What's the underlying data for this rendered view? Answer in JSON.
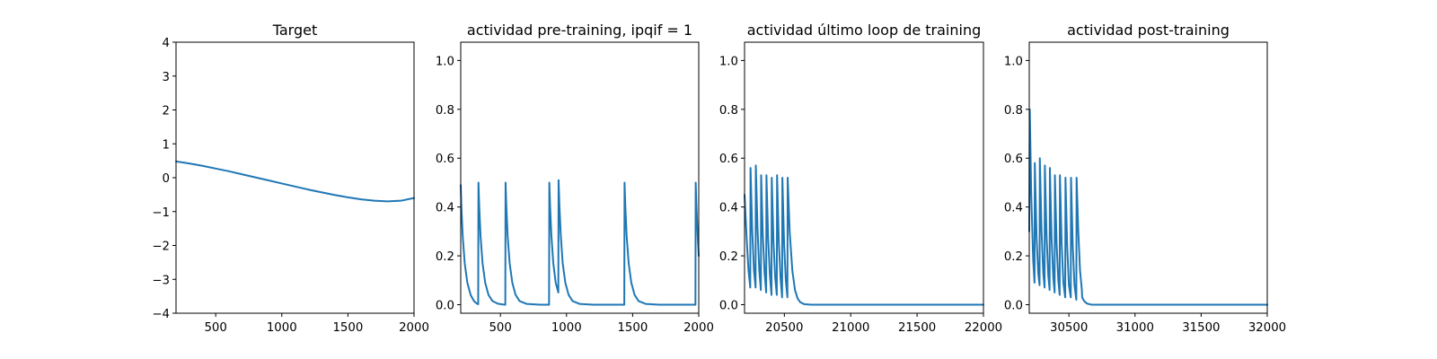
{
  "colors": {
    "line": "#1f77b4",
    "axes": "#000000",
    "background": "#ffffff"
  },
  "chart_data": [
    {
      "type": "line",
      "title": "Target",
      "xlabel": "",
      "ylabel": "",
      "xlim": [
        200,
        2000
      ],
      "ylim": [
        -4,
        4
      ],
      "xticks": [
        500,
        1000,
        1500,
        2000
      ],
      "xtick_labels": [
        "500",
        "1000",
        "1500",
        "2000"
      ],
      "yticks": [
        -4,
        -3,
        -2,
        -1,
        0,
        1,
        2,
        3,
        4
      ],
      "ytick_labels": [
        "−4",
        "−3",
        "−2",
        "−1",
        "0",
        "1",
        "2",
        "3",
        "4"
      ],
      "series": [
        {
          "x": [
            200,
            300,
            400,
            500,
            600,
            700,
            800,
            900,
            1000,
            1100,
            1200,
            1300,
            1400,
            1500,
            1600,
            1700,
            1800,
            1900,
            2000
          ],
          "y": [
            0.48,
            0.42,
            0.35,
            0.27,
            0.19,
            0.1,
            0.01,
            -0.08,
            -0.17,
            -0.26,
            -0.35,
            -0.43,
            -0.51,
            -0.58,
            -0.64,
            -0.68,
            -0.7,
            -0.68,
            -0.6
          ]
        }
      ]
    },
    {
      "type": "line",
      "title": "actividad pre-training, ipqif = 1",
      "xlabel": "",
      "ylabel": "",
      "xlim": [
        200,
        2000
      ],
      "ylim": [
        -0.035,
        1.075
      ],
      "xticks": [
        500,
        1000,
        1500,
        2000
      ],
      "xtick_labels": [
        "500",
        "1000",
        "1500",
        "2000"
      ],
      "yticks": [
        0,
        0.2,
        0.4,
        0.6,
        0.8,
        1.0
      ],
      "ytick_labels": [
        "0.0",
        "0.2",
        "0.4",
        "0.6",
        "0.8",
        "1.0"
      ],
      "series": [
        {
          "x": [
            200,
            205,
            215,
            230,
            250,
            275,
            300,
            320,
            332,
            334,
            340,
            350,
            365,
            385,
            410,
            440,
            480,
            520,
            537,
            539,
            545,
            555,
            570,
            590,
            615,
            645,
            700,
            800,
            868,
            870,
            876,
            886,
            900,
            918,
            938,
            940,
            946,
            956,
            971,
            991,
            1016,
            1046,
            1100,
            1200,
            1300,
            1400,
            1437,
            1439,
            1445,
            1455,
            1470,
            1490,
            1515,
            1545,
            1600,
            1700,
            1800,
            1900,
            1975,
            1977,
            1983,
            1993,
            2000
          ],
          "y": [
            0.49,
            0.4,
            0.28,
            0.17,
            0.09,
            0.04,
            0.015,
            0.005,
            0.002,
            0.5,
            0.4,
            0.28,
            0.17,
            0.09,
            0.04,
            0.015,
            0.004,
            0.001,
            0.0,
            0.5,
            0.4,
            0.28,
            0.17,
            0.09,
            0.04,
            0.015,
            0.003,
            0.0,
            0.0,
            0.5,
            0.4,
            0.28,
            0.17,
            0.09,
            0.05,
            0.51,
            0.41,
            0.29,
            0.17,
            0.09,
            0.04,
            0.015,
            0.003,
            0.0,
            0.0,
            0.0,
            0.0,
            0.5,
            0.4,
            0.28,
            0.17,
            0.09,
            0.04,
            0.015,
            0.003,
            0.0,
            0.0,
            0.0,
            0.0,
            0.5,
            0.4,
            0.27,
            0.2
          ]
        }
      ]
    },
    {
      "type": "line",
      "title": "actividad último loop de training",
      "xlabel": "",
      "ylabel": "",
      "xlim": [
        20200,
        22000
      ],
      "ylim": [
        -0.035,
        1.075
      ],
      "xticks": [
        20500,
        21000,
        21500,
        22000
      ],
      "xtick_labels": [
        "20500",
        "21000",
        "21500",
        "22000"
      ],
      "yticks": [
        0,
        0.2,
        0.4,
        0.6,
        0.8,
        1.0
      ],
      "ytick_labels": [
        "0.0",
        "0.2",
        "0.4",
        "0.6",
        "0.8",
        "1.0"
      ],
      "series": [
        {
          "x": [
            20200,
            20215,
            20230,
            20243,
            20245,
            20258,
            20271,
            20283,
            20285,
            20298,
            20311,
            20323,
            20325,
            20338,
            20351,
            20363,
            20365,
            20378,
            20391,
            20403,
            20405,
            20418,
            20431,
            20443,
            20445,
            20458,
            20471,
            20483,
            20485,
            20498,
            20511,
            20523,
            20525,
            20540,
            20560,
            20580,
            20600,
            20620,
            20650,
            20700,
            20800,
            21000,
            21500,
            22000
          ],
          "y": [
            0.45,
            0.28,
            0.14,
            0.07,
            0.56,
            0.3,
            0.14,
            0.07,
            0.57,
            0.31,
            0.14,
            0.06,
            0.53,
            0.28,
            0.13,
            0.05,
            0.53,
            0.27,
            0.12,
            0.04,
            0.52,
            0.26,
            0.11,
            0.04,
            0.53,
            0.26,
            0.11,
            0.03,
            0.52,
            0.25,
            0.1,
            0.03,
            0.52,
            0.3,
            0.14,
            0.06,
            0.025,
            0.01,
            0.002,
            0.0,
            0.0,
            0.0,
            0.0,
            0.0
          ]
        }
      ]
    },
    {
      "type": "line",
      "title": "actividad post-training",
      "xlabel": "",
      "ylabel": "",
      "xlim": [
        30200,
        32000
      ],
      "ylim": [
        -0.035,
        1.075
      ],
      "xticks": [
        30500,
        31000,
        31500,
        32000
      ],
      "xtick_labels": [
        "30500",
        "31000",
        "31500",
        "32000"
      ],
      "yticks": [
        0,
        0.2,
        0.4,
        0.6,
        0.8,
        1.0
      ],
      "ytick_labels": [
        "0.0",
        "0.2",
        "0.4",
        "0.6",
        "0.8",
        "1.0"
      ],
      "series": [
        {
          "x": [
            30200,
            30204,
            30215,
            30230,
            30240,
            30242,
            30255,
            30268,
            30278,
            30280,
            30293,
            30306,
            30316,
            30318,
            30331,
            30344,
            30354,
            30356,
            30369,
            30382,
            30392,
            30394,
            30407,
            30420,
            30430,
            30432,
            30445,
            30458,
            30472,
            30474,
            30487,
            30500,
            30514,
            30516,
            30529,
            30542,
            30556,
            30558,
            30571,
            30584,
            30598,
            30600,
            30615,
            30635,
            30655,
            30675,
            30700,
            30750,
            30800,
            31000,
            31500,
            32000
          ],
          "y": [
            0.3,
            0.8,
            0.45,
            0.18,
            0.09,
            0.58,
            0.28,
            0.13,
            0.08,
            0.6,
            0.3,
            0.13,
            0.07,
            0.57,
            0.28,
            0.12,
            0.06,
            0.56,
            0.27,
            0.11,
            0.05,
            0.53,
            0.25,
            0.1,
            0.04,
            0.53,
            0.25,
            0.09,
            0.03,
            0.52,
            0.24,
            0.08,
            0.03,
            0.52,
            0.24,
            0.08,
            0.02,
            0.52,
            0.3,
            0.14,
            0.06,
            0.03,
            0.015,
            0.005,
            0.002,
            0.0,
            0.0,
            0.0,
            0.0,
            0.0,
            0.0,
            0.0
          ]
        }
      ]
    }
  ]
}
